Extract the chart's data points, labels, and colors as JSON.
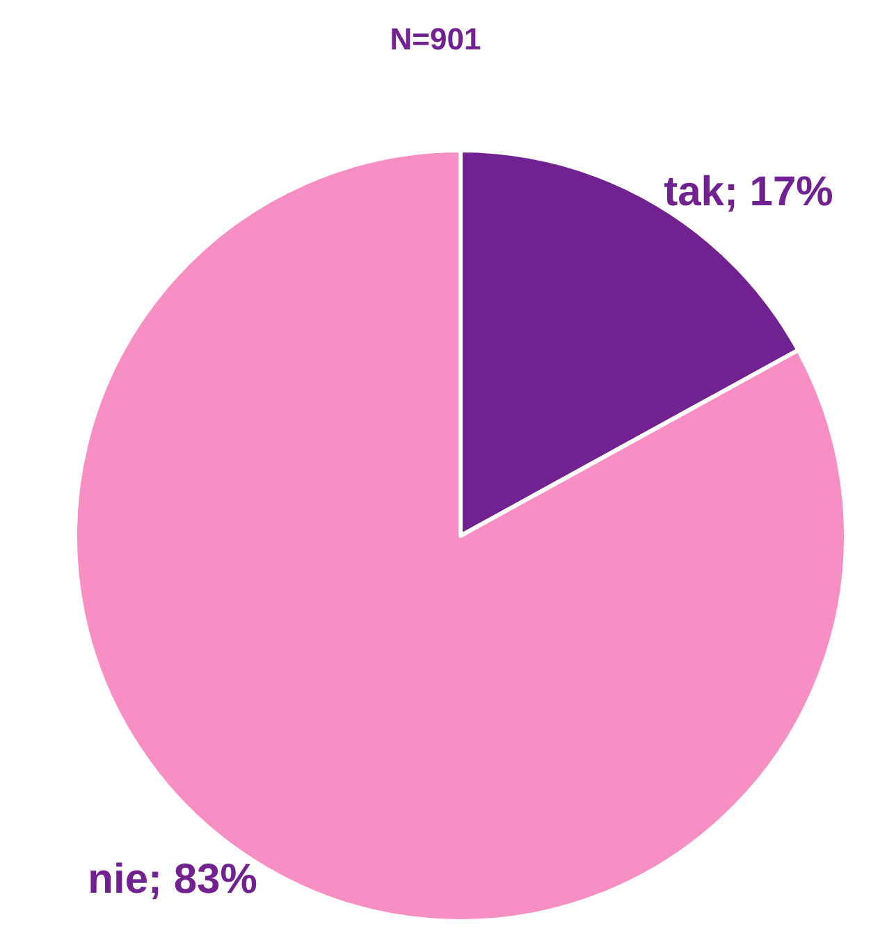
{
  "chart_data": {
    "type": "pie",
    "title": "N=901",
    "categories": [
      "tak",
      "nie"
    ],
    "values": [
      17,
      83
    ],
    "value_labels": [
      "; 17%",
      "; 83%"
    ],
    "colors": [
      "#722290",
      "#f78fc5"
    ],
    "legend": false
  }
}
